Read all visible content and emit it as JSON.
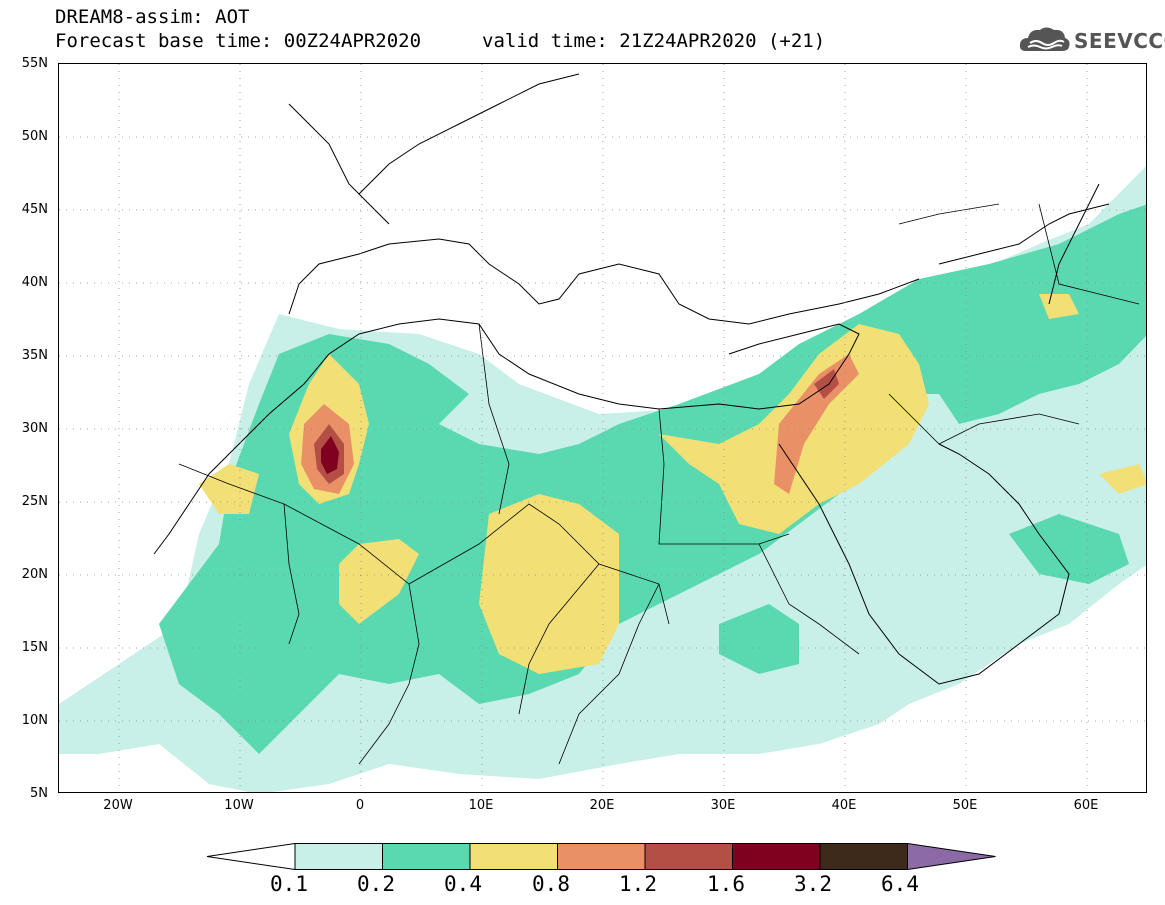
{
  "header": {
    "title": "DREAM8-assim: AOT",
    "forecast": "Forecast base time: 00Z24APR2020",
    "valid": "valid time: 21Z24APR2020 (+21)"
  },
  "logo": {
    "text": "SEEVCCC",
    "icon": "cloud-icon"
  },
  "map": {
    "latitude_labels": [
      "55N",
      "50N",
      "45N",
      "40N",
      "35N",
      "30N",
      "25N",
      "20N",
      "15N",
      "10N",
      "5N"
    ],
    "longitude_labels": [
      "20W",
      "10W",
      "0",
      "10E",
      "20E",
      "30E",
      "40E",
      "50E",
      "60E"
    ],
    "lon_range": [
      -25,
      65
    ],
    "lat_range": [
      5,
      55
    ],
    "gridlines": "dotted",
    "boundaries": "coastlines and national borders"
  },
  "colorbar": {
    "labels": [
      "0.1",
      "0.2",
      "0.4",
      "0.8",
      "1.2",
      "1.6",
      "3.2",
      "6.4"
    ],
    "colors": [
      "#ffffff",
      "#c8f0e8",
      "#5ad8b0",
      "#f2e076",
      "#e99066",
      "#b44f45",
      "#800020",
      "#3e2a1a",
      "#8b6aa6"
    ]
  }
}
